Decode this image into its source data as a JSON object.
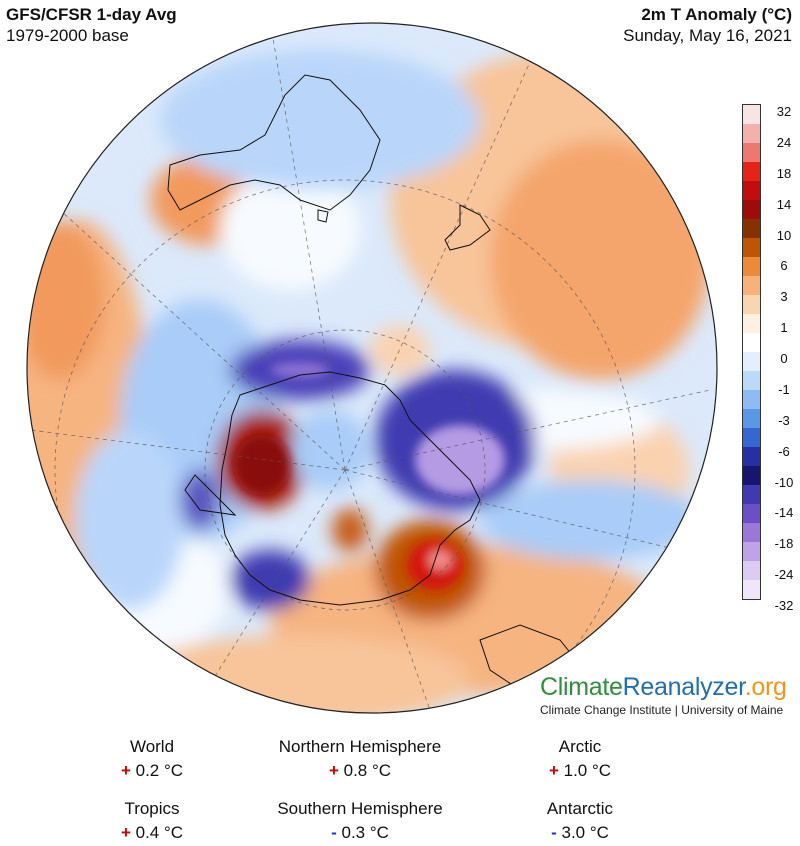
{
  "header": {
    "title": "GFS/CFSR 1-day Avg",
    "base": "1979-2000 base",
    "variable": "2m T Anomaly (°C)",
    "date": "Sunday, May 16, 2021"
  },
  "legend": {
    "labels": [
      "32",
      "24",
      "18",
      "14",
      "10",
      "6",
      "3",
      "1",
      "0",
      "-1",
      "-3",
      "-6",
      "-10",
      "-14",
      "-18",
      "-24",
      "-32"
    ],
    "colors": [
      "#f9e4e4",
      "#f3b0ac",
      "#ee7772",
      "#e52317",
      "#c20d10",
      "#9e0b0b",
      "#843201",
      "#bf5405",
      "#ec8a3a",
      "#f7b27c",
      "#fbd5b2",
      "#fef0e3",
      "#ffffff",
      "#e3efff",
      "#bcd9fb",
      "#8dbcf4",
      "#5a98e6",
      "#3766d1",
      "#26309e",
      "#16156f",
      "#3f3ab0",
      "#6a4fc6",
      "#9978d8",
      "#bda4e6",
      "#dccbf2",
      "#f0e6fa"
    ]
  },
  "brand": {
    "part1": "Climate",
    "part2": "Reanalyzer",
    "part3": ".org",
    "institution": "Climate Change Institute | University of Maine"
  },
  "stats": [
    {
      "name": "World",
      "sign": "+",
      "value": "0.2 °C"
    },
    {
      "name": "Northern Hemisphere",
      "sign": "+",
      "value": "0.8 °C"
    },
    {
      "name": "Arctic",
      "sign": "+",
      "value": "1.0 °C"
    },
    {
      "name": "Tropics",
      "sign": "+",
      "value": "0.4 °C"
    },
    {
      "name": "Southern Hemisphere",
      "sign": "-",
      "value": "0.3 °C"
    },
    {
      "name": "Antarctic",
      "sign": "-",
      "value": "3.0 °C"
    }
  ],
  "colors": {
    "warm": "#f7b27c",
    "cool": "#bcd9fb",
    "very_cold": "#3f3ab0",
    "very_warm": "#c20d10",
    "plus_sign": "#d10000",
    "minus_sign": "#1a37c8"
  }
}
